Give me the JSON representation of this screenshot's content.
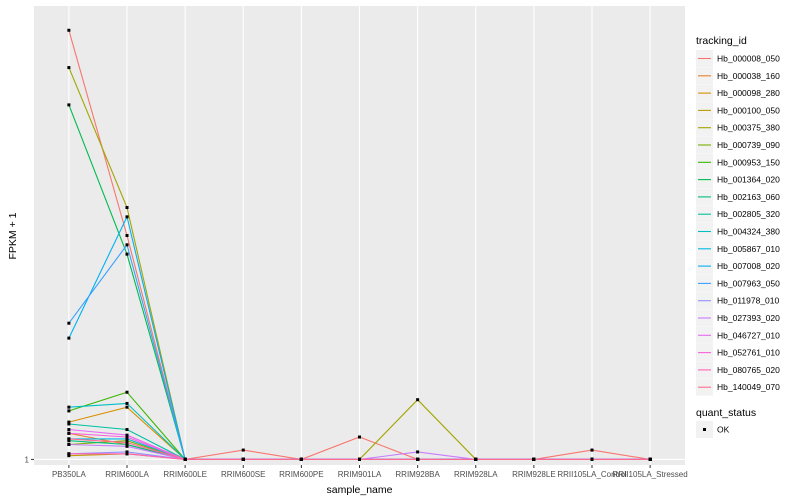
{
  "chart_data": {
    "type": "line",
    "xlabel": "sample_name",
    "ylabel": "FPKM + 1",
    "categories": [
      "PB350LA",
      "RRIM600LA",
      "RRIM600LE",
      "RRIM600SE",
      "RRIM600PE",
      "RRIM901LA",
      "RRIM928BA",
      "RRIM928LA",
      "RRIM928LE",
      "RRII105LA_Control",
      "RRII105LA_Stressed"
    ],
    "y_ticks": [
      {
        "value": 1,
        "label": "1"
      }
    ],
    "ylim": [
      0.7,
      25.3
    ],
    "grid": true,
    "legend_position": "right",
    "legend_title": "tracking_id",
    "status_legend": {
      "title": "quant_status",
      "items": [
        "OK"
      ]
    },
    "series": [
      {
        "name": "Hb_000008_050",
        "color": "#F8766D",
        "values": [
          24.0,
          13.0,
          1.0,
          1.5,
          1.0,
          2.2,
          1.0,
          1.0,
          1.0,
          1.5,
          1.0
        ]
      },
      {
        "name": "Hb_000038_160",
        "color": "#EA8331",
        "values": [
          2.4,
          1.8,
          1.0,
          1.0,
          1.0,
          1.0,
          1.0,
          1.0,
          1.0,
          1.0,
          1.0
        ]
      },
      {
        "name": "Hb_000098_280",
        "color": "#D89000",
        "values": [
          3.0,
          3.8,
          1.0,
          1.0,
          1.0,
          1.0,
          1.0,
          1.0,
          1.0,
          1.0,
          1.0
        ]
      },
      {
        "name": "Hb_000100_050",
        "color": "#C09B00",
        "values": [
          1.2,
          1.3,
          1.0,
          1.0,
          1.0,
          1.0,
          1.0,
          1.0,
          1.0,
          1.0,
          1.0
        ]
      },
      {
        "name": "Hb_000375_380",
        "color": "#A3A500",
        "values": [
          22.0,
          14.5,
          1.0,
          1.0,
          1.0,
          1.0,
          4.2,
          1.0,
          1.0,
          1.0,
          1.0
        ]
      },
      {
        "name": "Hb_000739_090",
        "color": "#7CAE00",
        "values": [
          1.8,
          2.0,
          1.0,
          1.0,
          1.0,
          1.0,
          1.0,
          1.0,
          1.0,
          1.0,
          1.0
        ]
      },
      {
        "name": "Hb_000953_150",
        "color": "#39B600",
        "values": [
          3.6,
          4.6,
          1.0,
          1.0,
          1.0,
          1.0,
          1.0,
          1.0,
          1.0,
          1.0,
          1.0
        ]
      },
      {
        "name": "Hb_001364_020",
        "color": "#00BB4E",
        "values": [
          20.0,
          12.0,
          1.0,
          1.0,
          1.0,
          1.0,
          1.0,
          1.0,
          1.0,
          1.0,
          1.0
        ]
      },
      {
        "name": "Hb_002163_060",
        "color": "#00BF7D",
        "values": [
          2.0,
          1.8,
          1.0,
          1.0,
          1.0,
          1.0,
          1.0,
          1.0,
          1.0,
          1.0,
          1.0
        ]
      },
      {
        "name": "Hb_002805_320",
        "color": "#00C1A3",
        "values": [
          2.9,
          2.6,
          1.0,
          1.0,
          1.0,
          1.0,
          1.0,
          1.0,
          1.0,
          1.0,
          1.0
        ]
      },
      {
        "name": "Hb_004324_380",
        "color": "#00BFC4",
        "values": [
          3.8,
          4.0,
          1.0,
          1.0,
          1.0,
          1.0,
          1.0,
          1.0,
          1.0,
          1.0,
          1.0
        ]
      },
      {
        "name": "Hb_005867_010",
        "color": "#00BAE0",
        "values": [
          2.1,
          2.1,
          1.0,
          1.0,
          1.0,
          1.0,
          1.0,
          1.0,
          1.0,
          1.0,
          1.0
        ]
      },
      {
        "name": "Hb_007008_020",
        "color": "#00B0F6",
        "values": [
          7.5,
          14.0,
          1.0,
          1.0,
          1.0,
          1.0,
          1.0,
          1.0,
          1.0,
          1.0,
          1.0
        ]
      },
      {
        "name": "Hb_007963_050",
        "color": "#35A2FF",
        "values": [
          8.3,
          12.5,
          1.0,
          1.0,
          1.0,
          1.0,
          1.0,
          1.0,
          1.0,
          1.0,
          1.0
        ]
      },
      {
        "name": "Hb_011978_010",
        "color": "#9590FF",
        "values": [
          1.3,
          1.4,
          1.0,
          1.0,
          1.0,
          1.0,
          1.0,
          1.0,
          1.0,
          1.0,
          1.0
        ]
      },
      {
        "name": "Hb_027393_020",
        "color": "#C77CFF",
        "values": [
          1.8,
          1.7,
          1.0,
          1.0,
          1.0,
          1.0,
          1.4,
          1.0,
          1.0,
          1.0,
          1.0
        ]
      },
      {
        "name": "Hb_046727_010",
        "color": "#E76BF3",
        "values": [
          2.6,
          2.3,
          1.0,
          1.0,
          1.0,
          1.0,
          1.0,
          1.0,
          1.0,
          1.0,
          1.0
        ]
      },
      {
        "name": "Hb_052761_010",
        "color": "#FA62DB",
        "values": [
          2.4,
          2.2,
          1.0,
          1.0,
          1.0,
          1.0,
          1.0,
          1.0,
          1.0,
          1.0,
          1.0
        ]
      },
      {
        "name": "Hb_080765_020",
        "color": "#FF62BC",
        "values": [
          1.3,
          1.3,
          1.0,
          1.0,
          1.0,
          1.0,
          1.0,
          1.0,
          1.0,
          1.0,
          1.0
        ]
      },
      {
        "name": "Hb_140049_070",
        "color": "#FF6C91",
        "values": [
          2.1,
          1.9,
          1.0,
          1.0,
          1.0,
          1.0,
          1.0,
          1.0,
          1.0,
          1.0,
          1.0
        ]
      }
    ]
  }
}
